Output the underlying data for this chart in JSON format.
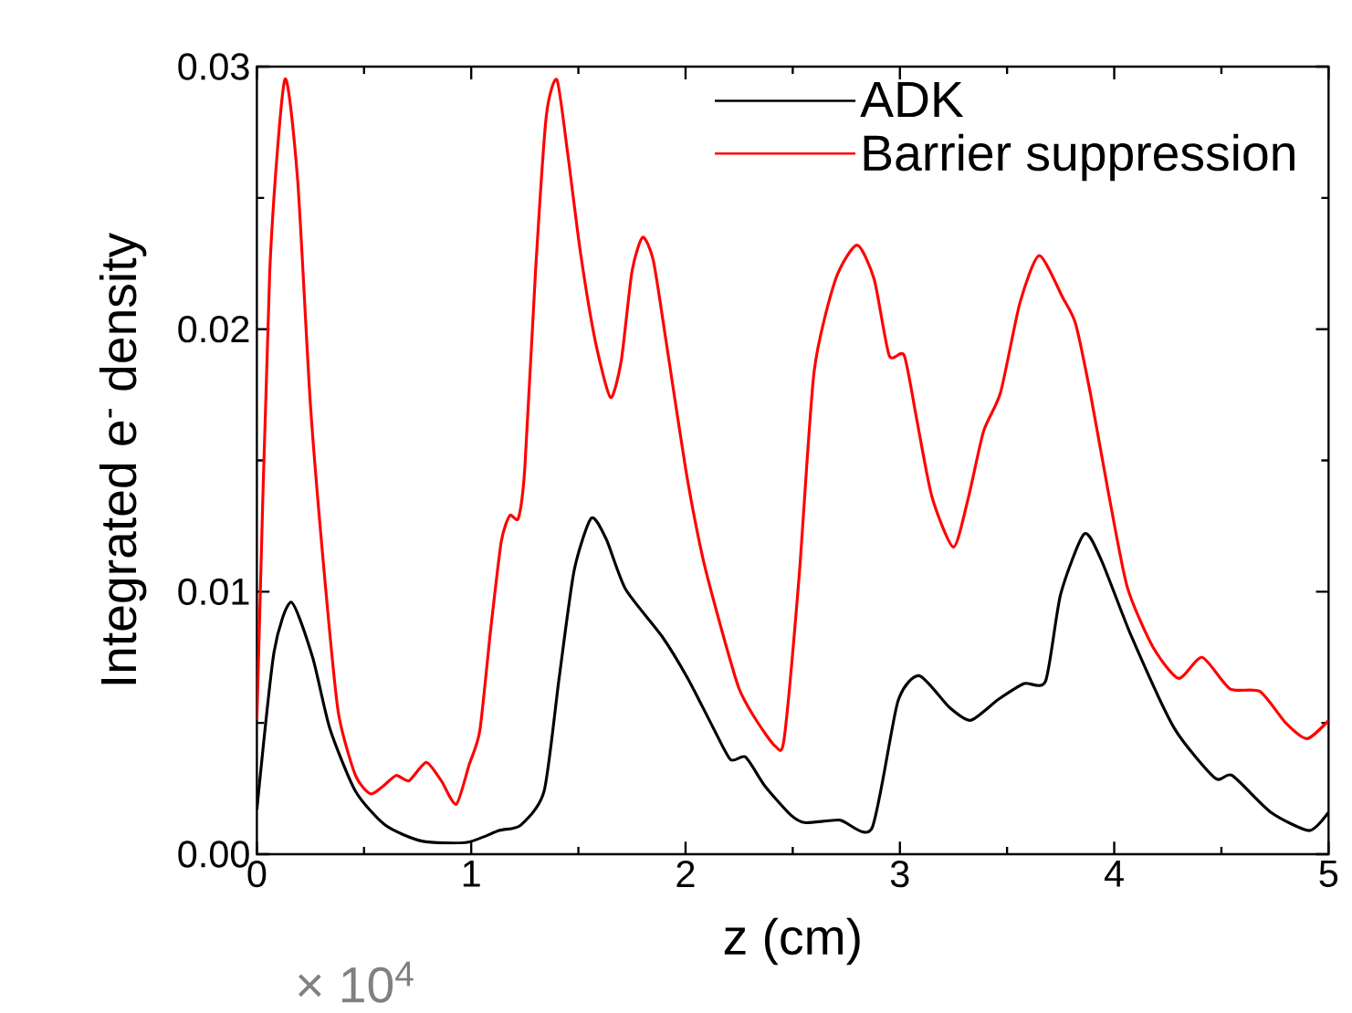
{
  "chart_data": {
    "type": "line",
    "xlabel": "z (cm)",
    "ylabel": "Integrated e$^{-}$ density",
    "xlim": [
      0,
      5
    ],
    "ylim": [
      0,
      0.03
    ],
    "xticks": [
      0,
      1,
      2,
      3,
      4,
      5
    ],
    "yticks": [
      {
        "value": 0,
        "label": "0.00"
      },
      {
        "value": 0.01,
        "label": "0.01"
      },
      {
        "value": 0.02,
        "label": "0.02"
      },
      {
        "value": 0.03,
        "label": "0.03"
      }
    ],
    "legend": "top right",
    "grid": false,
    "marker": "none",
    "line_style": "solid",
    "annotations": [
      "× 10$^{4}$"
    ],
    "series": [
      {
        "name": "ADK",
        "color": "#000000",
        "x": [
          0,
          0.08,
          0.16,
          0.26,
          0.34,
          0.46,
          0.6,
          0.77,
          0.98,
          1.13,
          1.23,
          1.34,
          1.41,
          1.48,
          1.56,
          1.63,
          1.72,
          1.89,
          2.01,
          2.13,
          2.21,
          2.28,
          2.37,
          2.49,
          2.56,
          2.72,
          2.87,
          2.99,
          3.09,
          3.23,
          3.33,
          3.46,
          3.58,
          3.68,
          3.75,
          3.86,
          3.94,
          4.08,
          4.28,
          4.47,
          4.55,
          4.73,
          4.91,
          5.0
        ],
        "values": [
          0.0017,
          0.0077,
          0.0096,
          0.0075,
          0.0048,
          0.0024,
          0.0011,
          0.0005,
          0.00045,
          0.0009,
          0.0011,
          0.0024,
          0.0067,
          0.0108,
          0.0128,
          0.012,
          0.0101,
          0.0083,
          0.0067,
          0.0048,
          0.0036,
          0.0037,
          0.0026,
          0.0015,
          0.0012,
          0.0013,
          0.001,
          0.0058,
          0.0068,
          0.0056,
          0.0051,
          0.0059,
          0.0065,
          0.0066,
          0.0099,
          0.0122,
          0.0112,
          0.0083,
          0.0048,
          0.0029,
          0.003,
          0.0016,
          0.0009,
          0.0016
        ]
      },
      {
        "name": "Barrier suppression",
        "color": "#ff0000",
        "x": [
          0,
          0.06,
          0.13,
          0.19,
          0.25,
          0.32,
          0.38,
          0.46,
          0.53,
          0.59,
          0.65,
          0.71,
          0.79,
          0.86,
          0.93,
          0.99,
          1.04,
          1.09,
          1.14,
          1.18,
          1.22,
          1.25,
          1.3,
          1.35,
          1.4,
          1.45,
          1.51,
          1.58,
          1.65,
          1.7,
          1.75,
          1.8,
          1.85,
          1.91,
          2.0,
          2.08,
          2.17,
          2.25,
          2.33,
          2.42,
          2.46,
          2.53,
          2.6,
          2.7,
          2.8,
          2.88,
          2.95,
          3.02,
          3.08,
          3.15,
          3.25,
          3.32,
          3.39,
          3.47,
          3.56,
          3.65,
          3.76,
          3.82,
          3.89,
          3.97,
          4.06,
          4.18,
          4.3,
          4.41,
          4.54,
          4.68,
          4.8,
          4.9,
          5.0
        ],
        "values": [
          0.0051,
          0.0222,
          0.0295,
          0.0257,
          0.0171,
          0.0102,
          0.0054,
          0.003,
          0.0023,
          0.0026,
          0.003,
          0.0028,
          0.0035,
          0.0028,
          0.0019,
          0.0034,
          0.0047,
          0.0085,
          0.0119,
          0.0129,
          0.0128,
          0.0147,
          0.0222,
          0.0281,
          0.0295,
          0.0267,
          0.0229,
          0.0195,
          0.0174,
          0.0188,
          0.0222,
          0.0235,
          0.0226,
          0.0195,
          0.0147,
          0.0113,
          0.0085,
          0.0063,
          0.0051,
          0.0041,
          0.0044,
          0.0106,
          0.0184,
          0.0219,
          0.0232,
          0.0219,
          0.019,
          0.019,
          0.0165,
          0.0136,
          0.0117,
          0.0136,
          0.0161,
          0.0176,
          0.021,
          0.0228,
          0.0212,
          0.0202,
          0.0175,
          0.0139,
          0.0102,
          0.0079,
          0.0067,
          0.0075,
          0.0063,
          0.0062,
          0.005,
          0.0044,
          0.0051
        ]
      }
    ]
  }
}
